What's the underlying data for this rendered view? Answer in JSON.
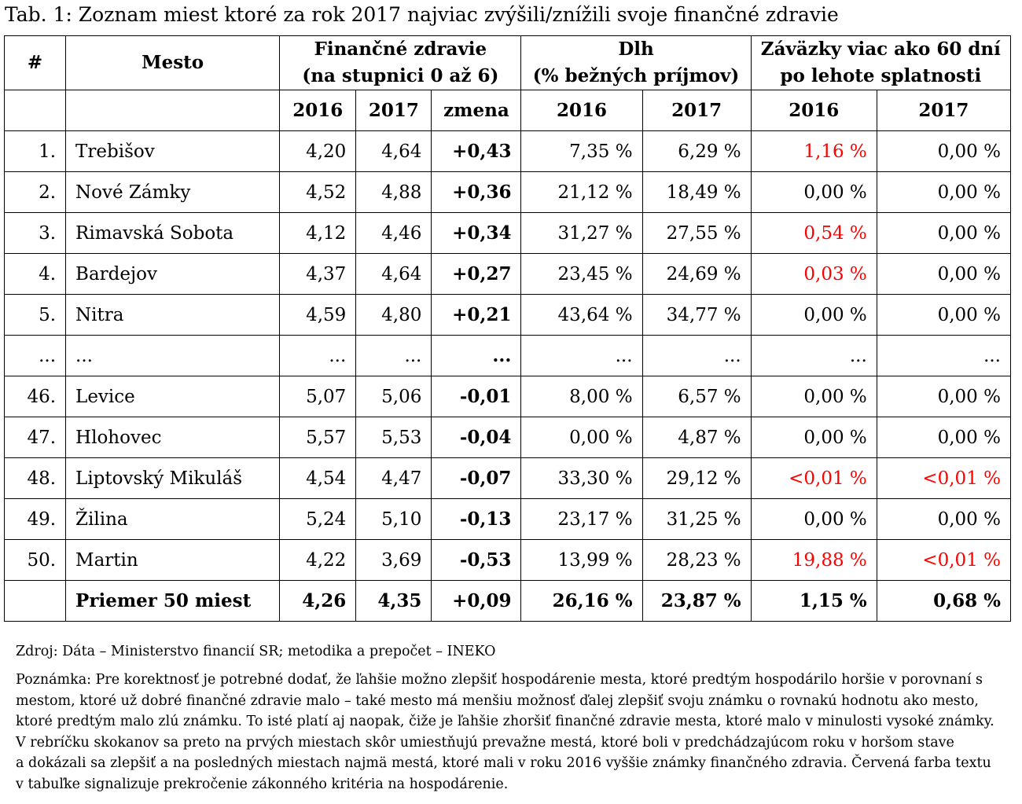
{
  "title": "Tab. 1: Zoznam miest ktoré za rok 2017 najviac zvýšili/znížili svoje finančné zdravie",
  "header": {
    "rank": "#",
    "city": "Mesto",
    "health_line1": "Finančné zdravie",
    "health_line2": "(na stupnici 0 až 6)",
    "debt_line1": "Dlh",
    "debt_line2": "(% bežných príjmov)",
    "liab_line1": "Záväzky viac ako 60 dní",
    "liab_line2": "po lehote splatnosti",
    "sub": [
      "2016",
      "2017",
      "zmena",
      "2016",
      "2017",
      "2016",
      "2017"
    ]
  },
  "rows": [
    {
      "rank": "1.",
      "city": "Trebišov",
      "h2016": "4,20",
      "h2017": "4,64",
      "change": "+0,43",
      "d2016": "7,35 %",
      "d2017": "6,29 %",
      "l2016": "1,16 %",
      "l2017": "0,00 %",
      "l2016_red": true,
      "l2017_red": false
    },
    {
      "rank": "2.",
      "city": "Nové Zámky",
      "h2016": "4,52",
      "h2017": "4,88",
      "change": "+0,36",
      "d2016": "21,12 %",
      "d2017": "18,49 %",
      "l2016": "0,00 %",
      "l2017": "0,00 %",
      "l2016_red": false,
      "l2017_red": false
    },
    {
      "rank": "3.",
      "city": "Rimavská Sobota",
      "h2016": "4,12",
      "h2017": "4,46",
      "change": "+0,34",
      "d2016": "31,27 %",
      "d2017": "27,55 %",
      "l2016": "0,54 %",
      "l2017": "0,00 %",
      "l2016_red": true,
      "l2017_red": false
    },
    {
      "rank": "4.",
      "city": "Bardejov",
      "h2016": "4,37",
      "h2017": "4,64",
      "change": "+0,27",
      "d2016": "23,45 %",
      "d2017": "24,69 %",
      "l2016": "0,03 %",
      "l2017": "0,00 %",
      "l2016_red": true,
      "l2017_red": false
    },
    {
      "rank": "5.",
      "city": "Nitra",
      "h2016": "4,59",
      "h2017": "4,80",
      "change": "+0,21",
      "d2016": "43,64 %",
      "d2017": "34,77 %",
      "l2016": "0,00 %",
      "l2017": "0,00 %",
      "l2016_red": false,
      "l2017_red": false
    },
    {
      "rank": "...",
      "city": "...",
      "h2016": "...",
      "h2017": "...",
      "change": "...",
      "d2016": "...",
      "d2017": "...",
      "l2016": "...",
      "l2017": "...",
      "l2016_red": false,
      "l2017_red": false
    },
    {
      "rank": "46.",
      "city": "Levice",
      "h2016": "5,07",
      "h2017": "5,06",
      "change": "-0,01",
      "d2016": "8,00 %",
      "d2017": "6,57 %",
      "l2016": "0,00 %",
      "l2017": "0,00 %",
      "l2016_red": false,
      "l2017_red": false
    },
    {
      "rank": "47.",
      "city": "Hlohovec",
      "h2016": "5,57",
      "h2017": "5,53",
      "change": "-0,04",
      "d2016": "0,00 %",
      "d2017": "4,87 %",
      "l2016": "0,00 %",
      "l2017": "0,00 %",
      "l2016_red": false,
      "l2017_red": false
    },
    {
      "rank": "48.",
      "city": "Liptovský Mikuláš",
      "h2016": "4,54",
      "h2017": "4,47",
      "change": "-0,07",
      "d2016": "33,30 %",
      "d2017": "29,12 %",
      "l2016": "<0,01 %",
      "l2017": "<0,01 %",
      "l2016_red": true,
      "l2017_red": true
    },
    {
      "rank": "49.",
      "city": "Žilina",
      "h2016": "5,24",
      "h2017": "5,10",
      "change": "-0,13",
      "d2016": "23,17 %",
      "d2017": "31,25 %",
      "l2016": "0,00 %",
      "l2017": "0,00 %",
      "l2016_red": false,
      "l2017_red": false
    },
    {
      "rank": "50.",
      "city": "Martin",
      "h2016": "4,22",
      "h2017": "3,69",
      "change": "-0,53",
      "d2016": "13,99 %",
      "d2017": "28,23 %",
      "l2016": "19,88 %",
      "l2017": "<0,01 %",
      "l2016_red": true,
      "l2017_red": true
    }
  ],
  "average": {
    "rank": "",
    "city": "Priemer 50 miest",
    "h2016": "4,26",
    "h2017": "4,35",
    "change": "+0,09",
    "d2016": "26,16 %",
    "d2017": "23,87 %",
    "l2016": "1,15 %",
    "l2017": "0,68 %"
  },
  "source": "Zdroj: Dáta – Ministerstvo financií SR; metodika a prepočet – INEKO",
  "note_lines": [
    "Poznámka: Pre korektnosť je potrebné dodať, že ľahšie možno zlepšiť hospodárenie mesta, ktoré predtým hospodárilo horšie v porovnaní s",
    "mestom, ktoré už dobré finančné zdravie malo – také mesto má menšiu možnosť ďalej zlepšiť svoju známku o rovnakú hodnotu ako mesto,",
    "ktoré predtým malo zlú známku. To isté platí aj naopak, čiže je ľahšie zhoršiť finančné zdravie mesta, ktoré malo v minulosti vysoké známky.",
    "V rebríčku skokanov sa preto na prvých miestach skôr umiestňujú prevažne mestá, ktoré boli v predchádzajúcom roku v horšom stave",
    "a dokázali sa zlepšiť a na posledných miestach najmä mestá, ktoré mali v roku 2016 vyššie známky finančného zdravia. Červená farba textu",
    "v tabuľke signalizuje prekročenie zákonného kritéria na hospodárenie."
  ],
  "colors": {
    "warning_text": "#ff0000",
    "border": "#000000"
  }
}
